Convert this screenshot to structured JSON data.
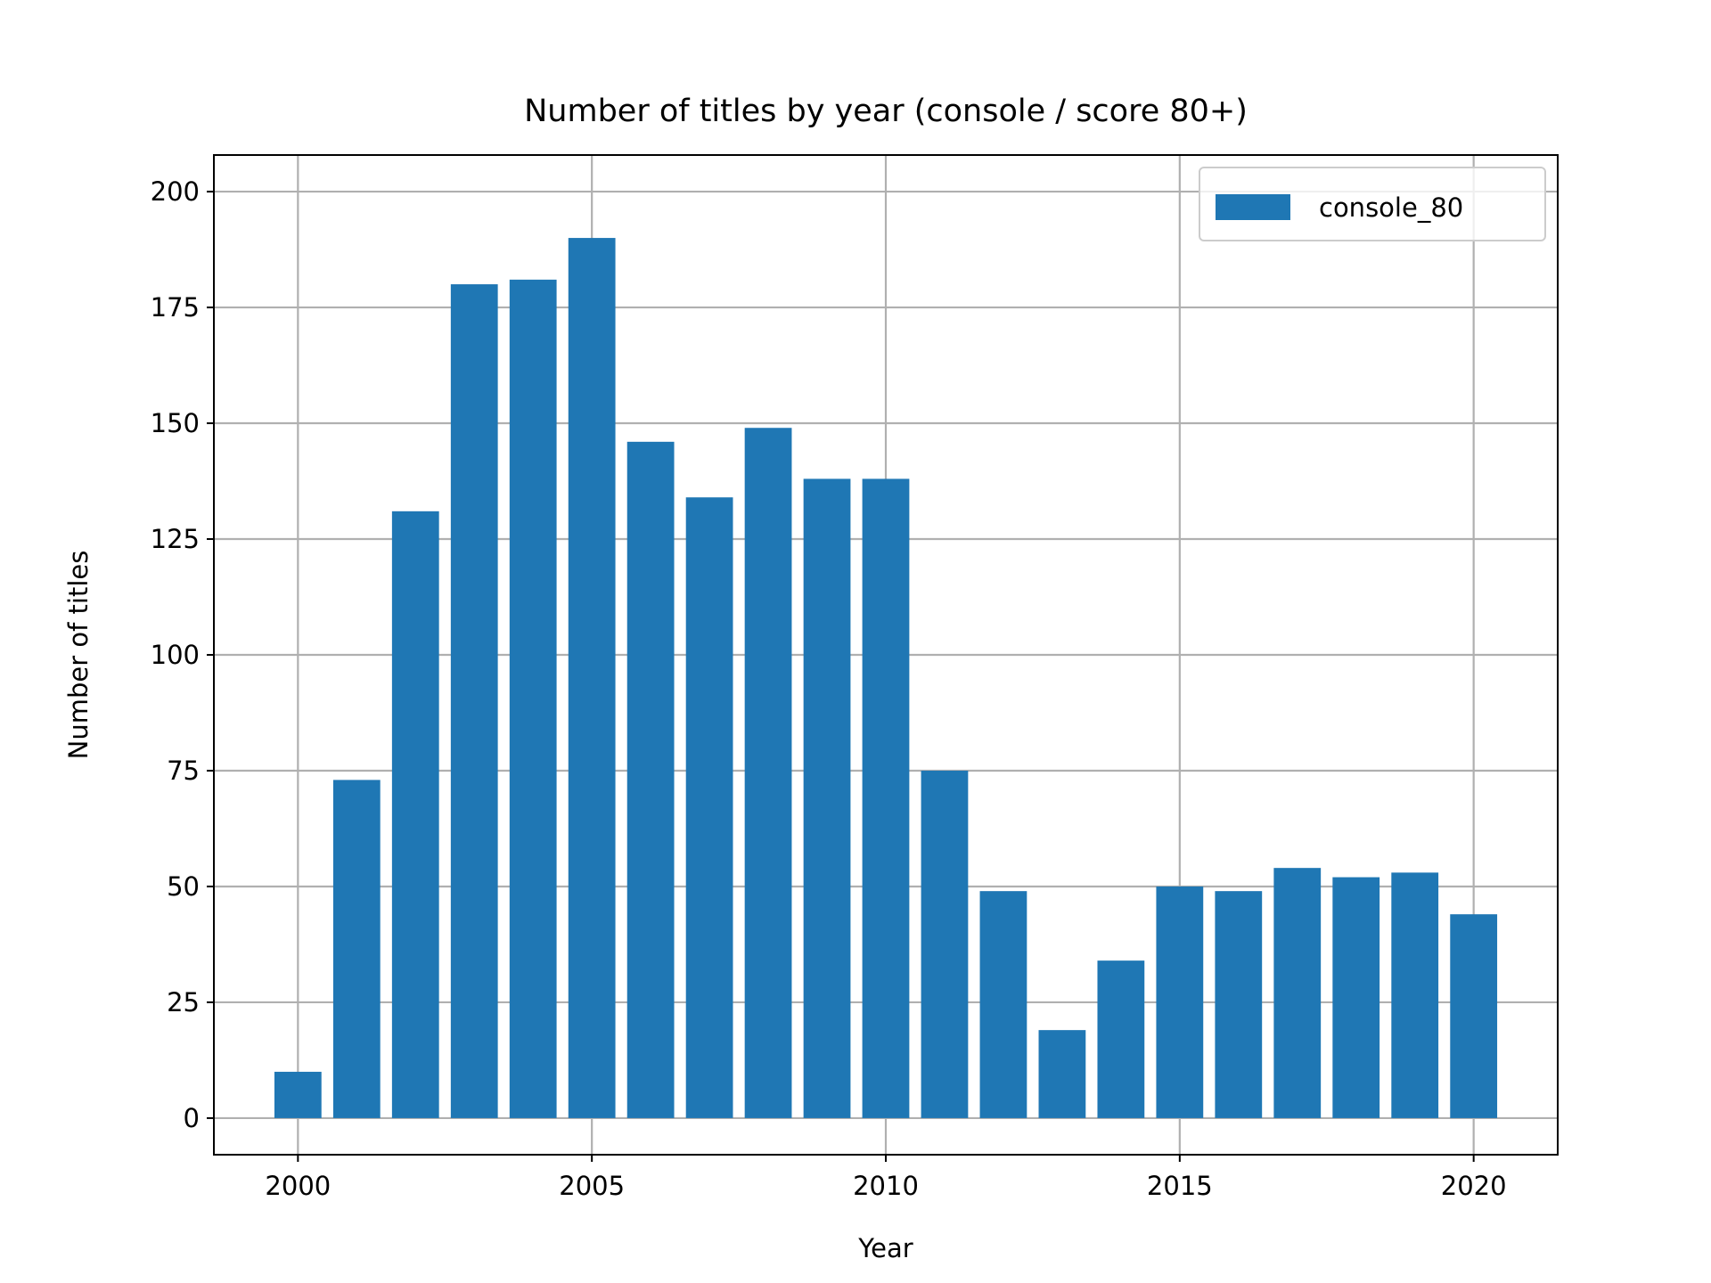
{
  "chart_data": {
    "type": "bar",
    "title": "Number of titles by year (console / score 80+)",
    "xlabel": "Year",
    "ylabel": "Number of titles",
    "x": [
      2000,
      2001,
      2002,
      2003,
      2004,
      2005,
      2006,
      2007,
      2008,
      2009,
      2010,
      2011,
      2012,
      2013,
      2014,
      2015,
      2016,
      2017,
      2018,
      2019,
      2020
    ],
    "series": [
      {
        "name": "console_80",
        "color": "#1f77b4",
        "values": [
          10,
          73,
          131,
          180,
          181,
          190,
          146,
          134,
          149,
          138,
          138,
          75,
          49,
          19,
          34,
          50,
          49,
          54,
          52,
          53,
          44
        ]
      }
    ],
    "xticks": [
      "2000",
      "2005",
      "2010",
      "2015",
      "2020"
    ],
    "yticks": [
      "0",
      "25",
      "50",
      "75",
      "100",
      "125",
      "150",
      "175",
      "200"
    ],
    "xlim": [
      1998.57,
      2021.43
    ],
    "ylim": [
      -7.9,
      207.9
    ],
    "grid": true,
    "legend_position": "upper-right"
  }
}
